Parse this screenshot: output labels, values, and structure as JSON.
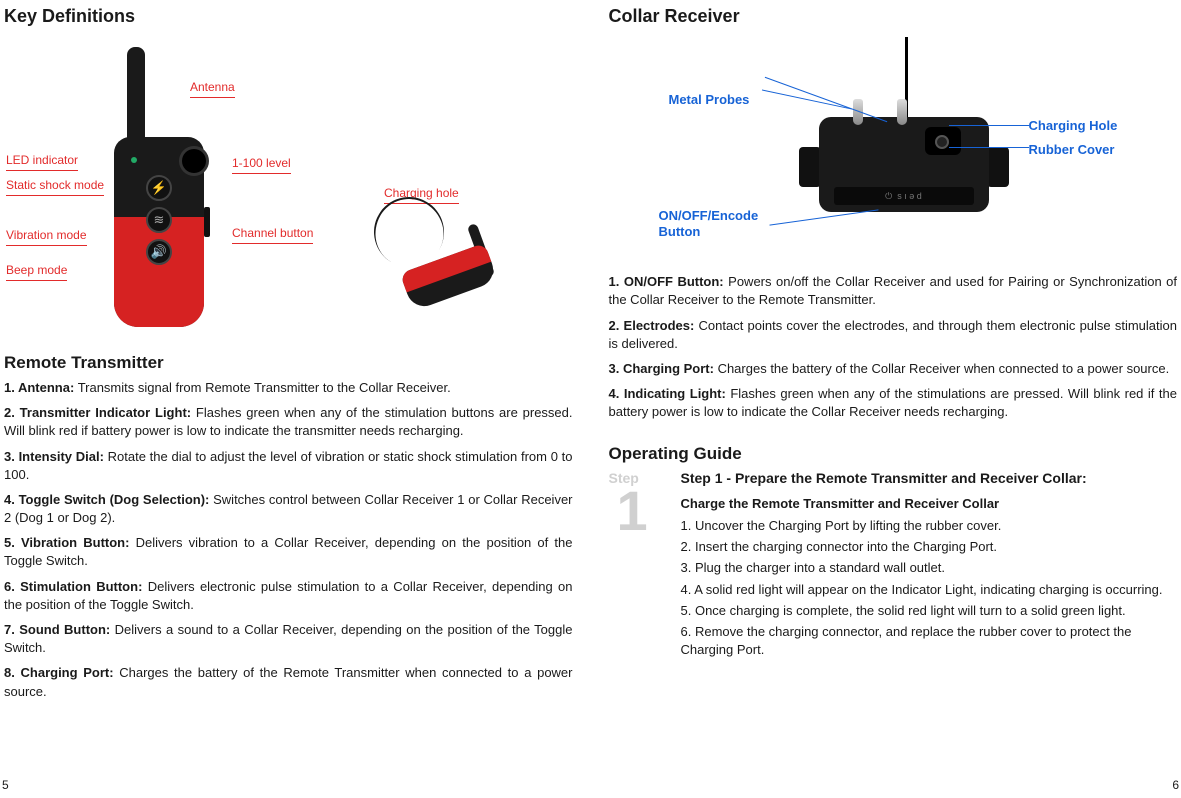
{
  "left": {
    "heading1": "Key Definitions",
    "callouts": {
      "antenna": "Antenna",
      "led": "LED  indicator",
      "level": "1-100 level",
      "static": "Static shock mode",
      "vibration": "Vibration  mode",
      "beep": "Beep  mode",
      "channel": "Channel  button",
      "charging": "Charging  hole"
    },
    "heading2": "Remote Transmitter",
    "items": [
      {
        "t": "1. Antenna:",
        "d": " Transmits signal from Remote Transmitter to the  Collar Receiver."
      },
      {
        "t": "2. Transmitter Indicator Light:",
        "d": " Flashes green when any of the stimulation buttons are pressed. Will blink red if battery power is low to indicate the transmitter needs recharging."
      },
      {
        "t": "3. Intensity Dial:",
        "d": " Rotate the dial to adjust the level of vibration or static shock stimulation from 0 to 100."
      },
      {
        "t": "4. Toggle Switch (Dog Selection):",
        "d": " Switches control between Collar Receiver 1 or Collar Receiver 2 (Dog 1 or Dog 2)."
      },
      {
        "t": "5. Vibration Button:",
        "d": " Delivers vibration to a Collar Receiver, depending on the position of the Toggle Switch."
      },
      {
        "t": "6. Stimulation Button:",
        "d": " Delivers electronic pulse stimulation to a Collar Receiver, depending on the position of the Toggle Switch."
      },
      {
        "t": "7. Sound Button:",
        "d": " Delivers a sound to a Collar Receiver, depending on the position of the Toggle Switch."
      },
      {
        "t": "8. Charging Port:",
        "d": " Charges the battery of the Remote Transmitter when connected to a power source."
      }
    ],
    "pagenum": "5"
  },
  "right": {
    "heading1": "Collar Receiver",
    "callouts": {
      "probes": "Metal Probes",
      "charging": "Charging Hole",
      "rubber": "Rubber Cover",
      "onoff1": "ON/OFF/Encode",
      "onoff2": "Button"
    },
    "items": [
      {
        "t": "1. ON/OFF Button:",
        "d": " Powers on/off the Collar Receiver and used for Pairing or Synchronization of the Collar Receiver to the Remote Transmitter."
      },
      {
        "t": "2. Electrodes:",
        "d": " Contact points cover the electrodes, and through them electronic pulse stimulation is delivered."
      },
      {
        "t": "3. Charging Port:",
        "d": " Charges the battery of the Collar Receiver when connected to a power source."
      },
      {
        "t": "4. Indicating Light:",
        "d": " Flashes green when any of the stimulations are pressed. Will blink red if the battery power is low to indicate the Collar Receiver needs recharging."
      }
    ],
    "heading2": "Operating Guide",
    "step_word": "Step",
    "step_num": "1",
    "op_title": "Step 1 - Prepare the Remote Transmitter and Receiver Collar:",
    "op_sub": "Charge the Remote Transmitter and Receiver Collar",
    "op_steps": [
      "1. Uncover the Charging Port by lifting the rubber cover.",
      "2. Insert the charging connector into the Charging Port.",
      "3. Plug the charger into a standard wall outlet.",
      "4. A solid red light will appear on the Indicator Light, indicating charging is occurring.",
      "5. Once charging is complete, the solid red light will turn to a solid green light.",
      "6. Remove the charging connector, and replace the rubber cover to protect the Charging Port."
    ],
    "pagenum": "6"
  },
  "colors": {
    "accent_red": "#e22b2b",
    "accent_blue": "#1763d6",
    "device_red": "#d62222",
    "text": "#1a1a1a",
    "bg": "#ffffff"
  }
}
